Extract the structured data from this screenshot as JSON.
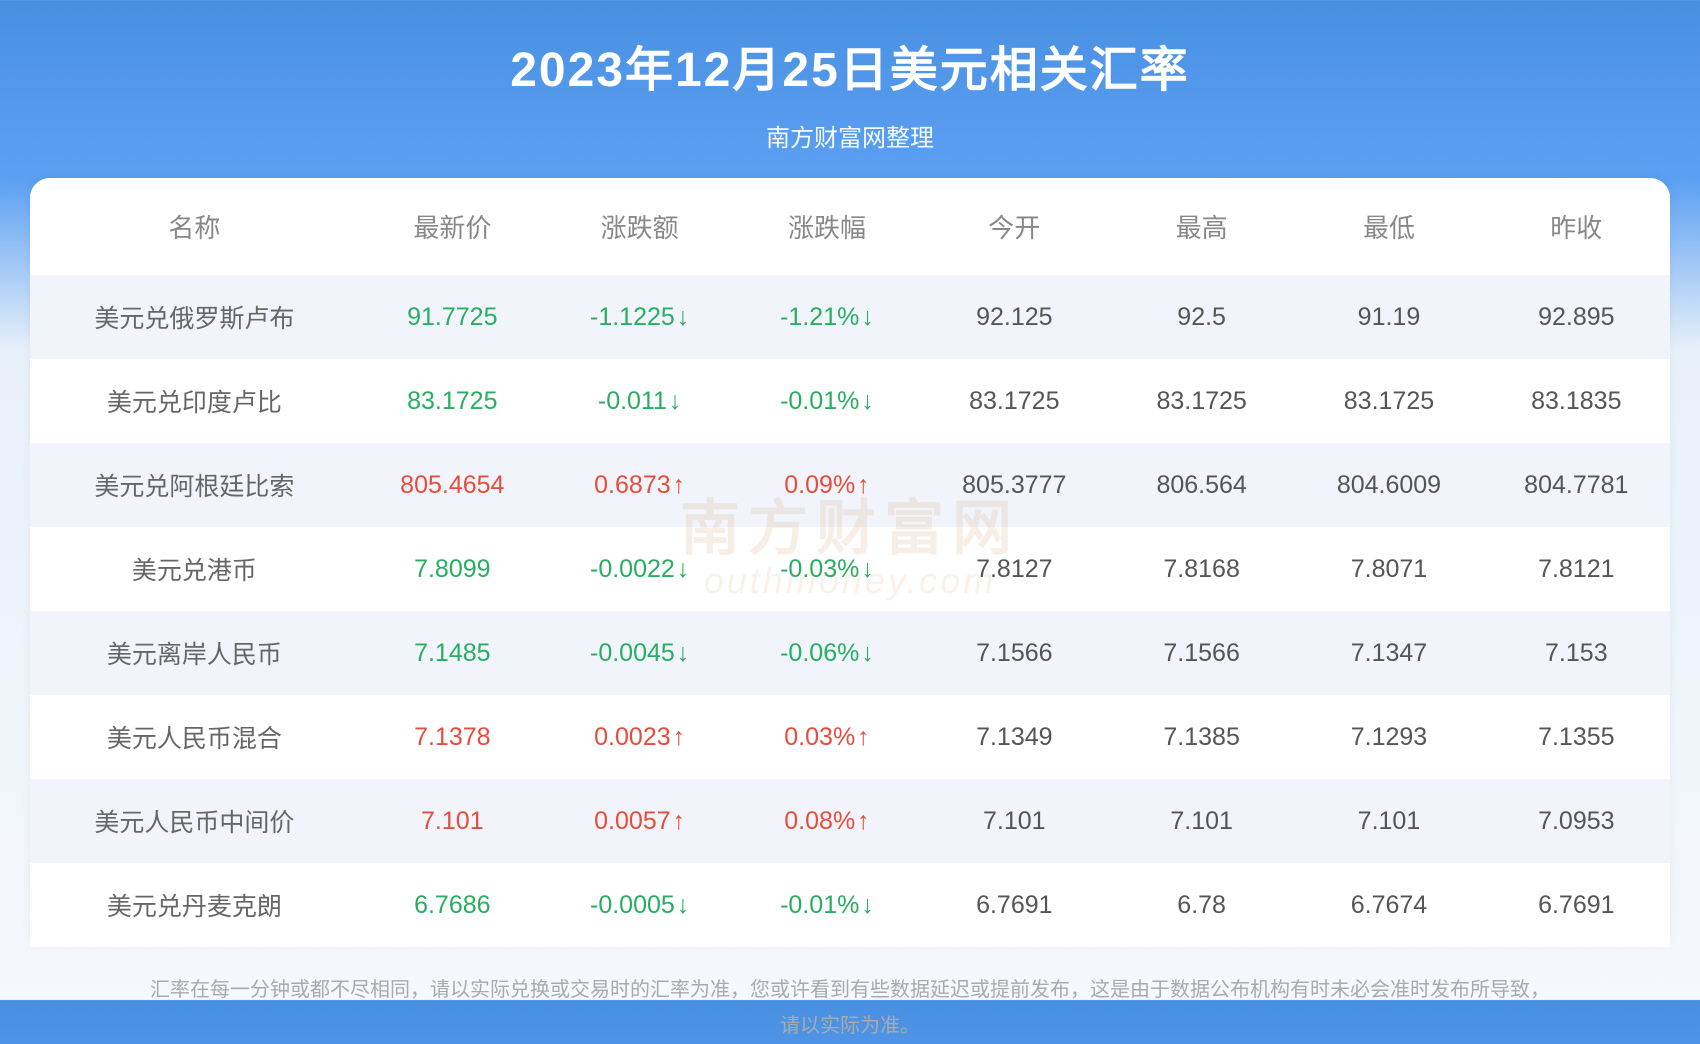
{
  "header": {
    "title": "2023年12月25日美元相关汇率",
    "subtitle": "南方财富网整理"
  },
  "watermark": {
    "main": "南方财富网",
    "sub": "outhmoney.com"
  },
  "table": {
    "columns": [
      "名称",
      "最新价",
      "涨跌额",
      "涨跌幅",
      "今开",
      "最高",
      "最低",
      "昨收"
    ],
    "rows": [
      {
        "name": "美元兑俄罗斯卢布",
        "price": "91.7725",
        "change": "-1.1225",
        "pct": "-1.21%",
        "open": "92.125",
        "high": "92.5",
        "low": "91.19",
        "prev": "92.895",
        "dir": "down"
      },
      {
        "name": "美元兑印度卢比",
        "price": "83.1725",
        "change": "-0.011",
        "pct": "-0.01%",
        "open": "83.1725",
        "high": "83.1725",
        "low": "83.1725",
        "prev": "83.1835",
        "dir": "down"
      },
      {
        "name": "美元兑阿根廷比索",
        "price": "805.4654",
        "change": "0.6873",
        "pct": "0.09%",
        "open": "805.3777",
        "high": "806.564",
        "low": "804.6009",
        "prev": "804.7781",
        "dir": "up"
      },
      {
        "name": "美元兑港币",
        "price": "7.8099",
        "change": "-0.0022",
        "pct": "-0.03%",
        "open": "7.8127",
        "high": "7.8168",
        "low": "7.8071",
        "prev": "7.8121",
        "dir": "down"
      },
      {
        "name": "美元离岸人民币",
        "price": "7.1485",
        "change": "-0.0045",
        "pct": "-0.06%",
        "open": "7.1566",
        "high": "7.1566",
        "low": "7.1347",
        "prev": "7.153",
        "dir": "down"
      },
      {
        "name": "美元人民币混合",
        "price": "7.1378",
        "change": "0.0023",
        "pct": "0.03%",
        "open": "7.1349",
        "high": "7.1385",
        "low": "7.1293",
        "prev": "7.1355",
        "dir": "up"
      },
      {
        "name": "美元人民币中间价",
        "price": "7.101",
        "change": "0.0057",
        "pct": "0.08%",
        "open": "7.101",
        "high": "7.101",
        "low": "7.101",
        "prev": "7.0953",
        "dir": "up"
      },
      {
        "name": "美元兑丹麦克朗",
        "price": "6.7686",
        "change": "-0.0005",
        "pct": "-0.01%",
        "open": "6.7691",
        "high": "6.78",
        "low": "6.7674",
        "prev": "6.7691",
        "dir": "down"
      }
    ]
  },
  "footer": {
    "line1": "汇率在每一分钟或都不尽相同，请以实际兑换或交易时的汇率为准，您或许看到有些数据延迟或提前发布，这是由于数据公布机构有时未必会准时发布所导致，",
    "line2": "请以实际为准。"
  },
  "style": {
    "up_color": "#e74c3c",
    "down_color": "#27ae60",
    "header_bg": "#4a90e2",
    "row_odd_bg": "#f1f5fb",
    "row_even_bg": "#ffffff",
    "text_color": "#555555",
    "header_text_color": "#888888",
    "title_fontsize": 48,
    "cell_fontsize": 25
  }
}
